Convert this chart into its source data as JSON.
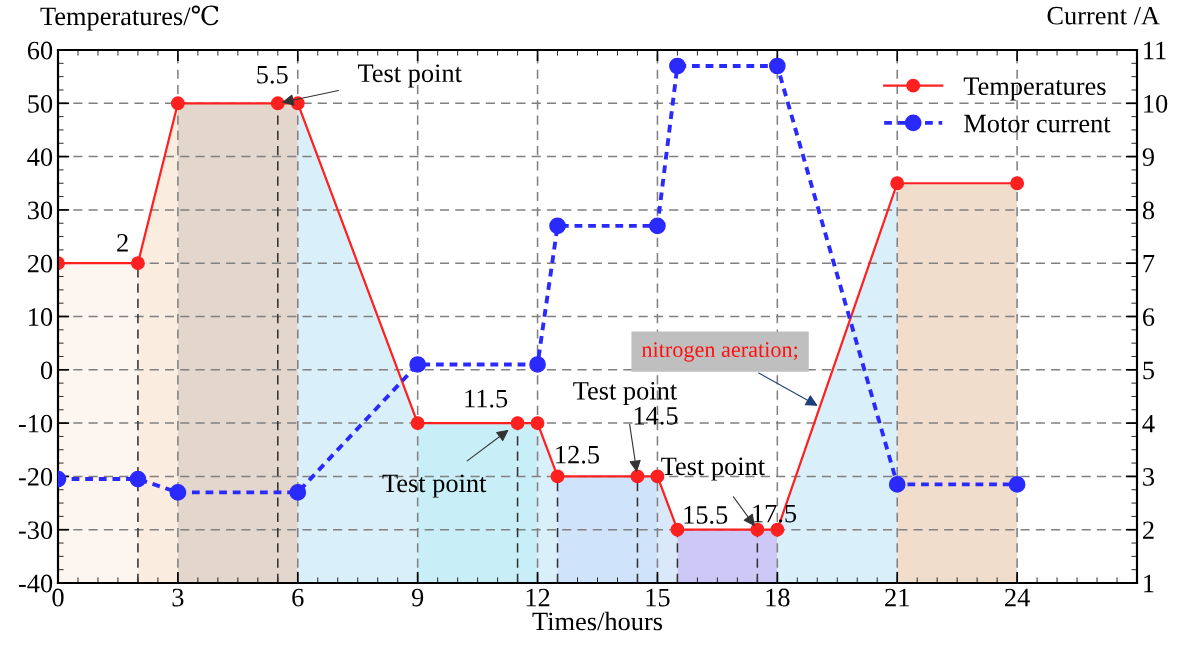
{
  "chart_data": {
    "type": "line",
    "xlabel": "Times/hours",
    "ylabel": "Temperatures/℃",
    "y2label": "Current /A",
    "xlim": [
      0,
      27
    ],
    "xticks": [
      0,
      3,
      6,
      9,
      12,
      15,
      18,
      21,
      24
    ],
    "ylim": [
      -40,
      60
    ],
    "yticks": [
      -40,
      -30,
      -20,
      -10,
      0,
      10,
      20,
      30,
      40,
      50,
      60
    ],
    "y2lim": [
      1,
      11
    ],
    "y2ticks": [
      1,
      2,
      3,
      4,
      5,
      6,
      7,
      8,
      9,
      10,
      11
    ],
    "grid": true,
    "legend": "top right",
    "marker": "circle",
    "series": [
      {
        "name": "Temperatures",
        "color": "#ff2020",
        "line_style": "solid",
        "x": [
          0,
          2,
          3,
          5.5,
          6,
          9,
          11.5,
          12,
          12.5,
          14.5,
          15,
          15.5,
          17.5,
          18,
          21,
          24
        ],
        "values": [
          20,
          20,
          50,
          50,
          50,
          -10,
          -10,
          -10,
          -20,
          -20,
          -20,
          -30,
          -30,
          -30,
          35,
          35
        ]
      },
      {
        "name": "Motor current",
        "color": "#2a2aff",
        "line_style": "dotted",
        "axis": "y2",
        "x": [
          0,
          2,
          3,
          6,
          9,
          12,
          12.5,
          15,
          15.5,
          18,
          21,
          24
        ],
        "values": [
          2.95,
          2.95,
          2.7,
          2.7,
          5.1,
          5.1,
          7.7,
          7.7,
          10.7,
          10.7,
          2.85,
          2.85
        ]
      }
    ],
    "bands": [
      {
        "axis": "x",
        "from": 0,
        "to": 2,
        "color": "#fdf6f0"
      },
      {
        "axis": "x",
        "from": 2,
        "to": 3,
        "color": "#fbece0"
      },
      {
        "axis": "x",
        "from": 3,
        "to": 6,
        "color": "#e3d6cc"
      },
      {
        "axis": "x",
        "from": 6,
        "to": 9,
        "color": "#d9eff9"
      },
      {
        "axis": "x",
        "from": 9,
        "to": 12,
        "color": "#c8eef8"
      },
      {
        "axis": "x",
        "from": 12,
        "to": 12.5,
        "color": "#d9eff9"
      },
      {
        "axis": "x",
        "from": 12.5,
        "to": 15,
        "color": "#cfe4fa"
      },
      {
        "axis": "x",
        "from": 15,
        "to": 15.5,
        "color": "#d9e9f9"
      },
      {
        "axis": "x",
        "from": 15.5,
        "to": 18,
        "color": "#cdc8f6"
      },
      {
        "axis": "x",
        "from": 18,
        "to": 21,
        "color": "#d9effa"
      },
      {
        "axis": "x",
        "from": 21,
        "to": 24,
        "color": "#f1ddcc"
      }
    ],
    "ref_lines": [
      {
        "axis": "x",
        "value": 2,
        "label": "2"
      },
      {
        "axis": "x",
        "value": 5.5,
        "label": "5.5"
      },
      {
        "axis": "x",
        "value": 11.5,
        "label": "11.5"
      },
      {
        "axis": "x",
        "value": 12.5,
        "label": "12.5"
      },
      {
        "axis": "x",
        "value": 14.5,
        "label": "14.5"
      },
      {
        "axis": "x",
        "value": 15.5,
        "label": "15.5"
      },
      {
        "axis": "x",
        "value": 17.5,
        "label": "17.5"
      }
    ],
    "annotations": [
      {
        "text": "Test point",
        "x": 5.5,
        "y": 50
      },
      {
        "text": "Test point",
        "x": 11.5,
        "y": -10
      },
      {
        "text": "Test point",
        "x": 14.5,
        "y": -20
      },
      {
        "text": "Test point",
        "x": 17.5,
        "y": -30
      },
      {
        "text": "nitrogen aeration;",
        "x": 19.07,
        "y": -7
      }
    ]
  }
}
